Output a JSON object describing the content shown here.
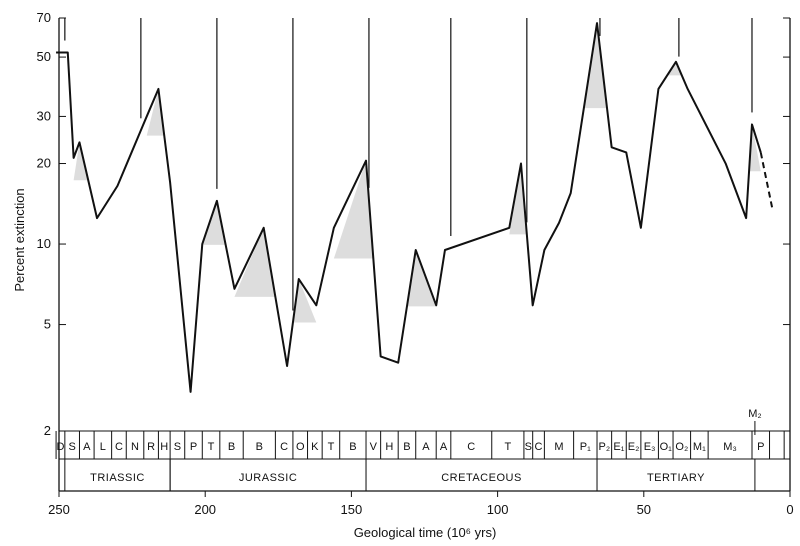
{
  "chart_data": {
    "type": "line",
    "title": "",
    "xlabel": "Geological time (10⁶ yrs)",
    "ylabel": "Percent extinction",
    "x_reversed": true,
    "y_scale": "log",
    "xlim": [
      250,
      0
    ],
    "ylim": [
      2,
      70
    ],
    "x_ticks": [
      250,
      200,
      150,
      100,
      50,
      0
    ],
    "y_ticks": [
      2,
      5,
      10,
      20,
      30,
      50,
      70
    ],
    "grid": false,
    "series": [
      {
        "solid": true,
        "x": [
          251,
          247,
          245,
          243,
          237,
          230,
          220,
          216,
          212,
          205,
          201,
          196,
          190,
          180,
          172,
          168,
          162,
          156,
          145,
          140,
          134,
          128,
          121,
          118,
          96,
          92,
          88,
          84,
          79,
          75,
          66,
          61,
          56,
          51,
          45,
          39,
          35,
          22,
          15,
          13,
          10
        ],
        "y": [
          52,
          52,
          21,
          24,
          12.5,
          16.5,
          30,
          38,
          17,
          2.8,
          10,
          14.5,
          6.8,
          11.5,
          3.5,
          7.4,
          5.9,
          11.5,
          20.5,
          3.8,
          3.6,
          9.5,
          5.9,
          9.5,
          11.5,
          20,
          5.9,
          9.5,
          12,
          15.5,
          67,
          23,
          22,
          11.5,
          38,
          48,
          38,
          20,
          12.5,
          28,
          22
        ]
      },
      {
        "solid": false,
        "x": [
          10,
          6
        ],
        "y": [
          22,
          13.5
        ]
      }
    ],
    "extinction_peaks_x": [
      248,
      222,
      196,
      170,
      144,
      116,
      90,
      65,
      38,
      13
    ],
    "stages": {
      "labels": [
        "D",
        "S",
        "A",
        "L",
        "C",
        "N",
        "R",
        "H",
        "S",
        "P",
        "T",
        "B",
        "B",
        "C",
        "O",
        "K",
        "T",
        "B",
        "V",
        "H",
        "B",
        "A",
        "A",
        "C",
        "T",
        "S",
        "C",
        "M",
        "P₁",
        "P₂",
        "E₁",
        "E₂",
        "E₃",
        "O₁",
        "O₂",
        "M₁",
        "M₃",
        "P"
      ],
      "boundaries": [
        251,
        248,
        243,
        238,
        232,
        227,
        221,
        216,
        212,
        207,
        201,
        195,
        187,
        176,
        170,
        165,
        160,
        154,
        145,
        140,
        134,
        128,
        121,
        116,
        102,
        91,
        88,
        84,
        74,
        66,
        61,
        56,
        51,
        45,
        40,
        34,
        28,
        13,
        7,
        2
      ],
      "extra_label": "M₂",
      "extra_label_x": 12
    },
    "periods": [
      {
        "label": "TRIASSIC",
        "start": 248,
        "end": 212
      },
      {
        "label": "JURASSIC",
        "start": 212,
        "end": 145
      },
      {
        "label": "CRETACEOUS",
        "start": 145,
        "end": 66
      },
      {
        "label": "TERTIARY",
        "start": 66,
        "end": 12
      }
    ]
  }
}
